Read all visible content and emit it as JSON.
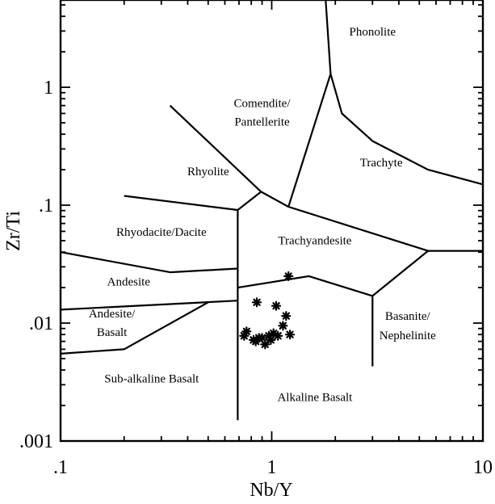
{
  "chart_data": {
    "type": "scatter",
    "title": "",
    "xlabel": "Nb/Y",
    "ylabel": "Zr/Ti",
    "x_scale": "log",
    "y_scale": "log",
    "xlim": [
      0.1,
      10
    ],
    "ylim": [
      0.001,
      5.5
    ],
    "x_ticks": [
      {
        "value": 0.1,
        "label": ".1"
      },
      {
        "value": 1,
        "label": "1"
      },
      {
        "value": 10,
        "label": "10"
      }
    ],
    "y_ticks": [
      {
        "value": 0.001,
        "label": ".001"
      },
      {
        "value": 0.01,
        "label": ".01"
      },
      {
        "value": 0.1,
        "label": ".1"
      },
      {
        "value": 1,
        "label": "1"
      }
    ],
    "grid": false,
    "legend": "none",
    "field_boundaries": [
      [
        [
          0.1,
          0.0055
        ],
        [
          0.2,
          0.006
        ],
        [
          0.5,
          0.015
        ]
      ],
      [
        [
          0.1,
          0.013
        ],
        [
          0.69,
          0.0155
        ]
      ],
      [
        [
          0.1,
          0.04
        ],
        [
          0.33,
          0.027
        ],
        [
          0.69,
          0.029
        ]
      ],
      [
        [
          0.69,
          0.0015
        ],
        [
          0.69,
          0.091
        ]
      ],
      [
        [
          0.2,
          0.12
        ],
        [
          0.69,
          0.091
        ],
        [
          0.89,
          0.13
        ],
        [
          1.2,
          0.097
        ],
        [
          5.5,
          0.041
        ],
        [
          10,
          0.041
        ]
      ],
      [
        [
          0.33,
          0.7
        ],
        [
          0.89,
          0.13
        ]
      ],
      [
        [
          0.69,
          0.02
        ],
        [
          1.5,
          0.025
        ],
        [
          3.0,
          0.017
        ],
        [
          5.5,
          0.041
        ]
      ],
      [
        [
          3.0,
          0.017
        ],
        [
          3.0,
          0.0043
        ]
      ],
      [
        [
          1.2,
          0.097
        ],
        [
          1.9,
          1.3
        ],
        [
          1.8,
          5.5
        ]
      ],
      [
        [
          1.9,
          1.3
        ],
        [
          2.15,
          0.6
        ],
        [
          3.0,
          0.35
        ],
        [
          5.5,
          0.2
        ],
        [
          10,
          0.15
        ]
      ]
    ],
    "field_labels": [
      {
        "text": "Phonolite",
        "x": 3.0,
        "y": 2.9
      },
      {
        "text": "Comendite/",
        "x": 0.9,
        "y": 0.72
      },
      {
        "text": "Pantellerite",
        "x": 0.9,
        "y": 0.5
      },
      {
        "text": "Trachyte",
        "x": 3.3,
        "y": 0.225
      },
      {
        "text": "Rhyolite",
        "x": 0.5,
        "y": 0.19
      },
      {
        "text": "Rhyodacite/Dacite",
        "x": 0.3,
        "y": 0.058
      },
      {
        "text": "Trachyandesite",
        "x": 1.6,
        "y": 0.049
      },
      {
        "text": "Andesite",
        "x": 0.21,
        "y": 0.022
      },
      {
        "text": "Andesite/",
        "x": 0.175,
        "y": 0.0118
      },
      {
        "text": "Basalt",
        "x": 0.175,
        "y": 0.0082
      },
      {
        "text": "Basanite/",
        "x": 4.4,
        "y": 0.0112
      },
      {
        "text": "Nephelinite",
        "x": 4.4,
        "y": 0.0077
      },
      {
        "text": "Sub-alkaline Basalt",
        "x": 0.27,
        "y": 0.0033
      },
      {
        "text": "Alkaline Basalt",
        "x": 1.6,
        "y": 0.0023
      }
    ],
    "series": [
      {
        "marker": "asterisk",
        "x": [
          1.2,
          0.85,
          1.05,
          1.17,
          1.13,
          1.22,
          1.02,
          1.07,
          0.97,
          0.87,
          0.82,
          0.84,
          0.9,
          0.76,
          0.74,
          0.93,
          0.99
        ],
        "y": [
          0.025,
          0.015,
          0.014,
          0.0115,
          0.0095,
          0.008,
          0.0082,
          0.0078,
          0.0078,
          0.0075,
          0.0072,
          0.007,
          0.0075,
          0.0085,
          0.0078,
          0.0066,
          0.0072
        ]
      }
    ]
  }
}
